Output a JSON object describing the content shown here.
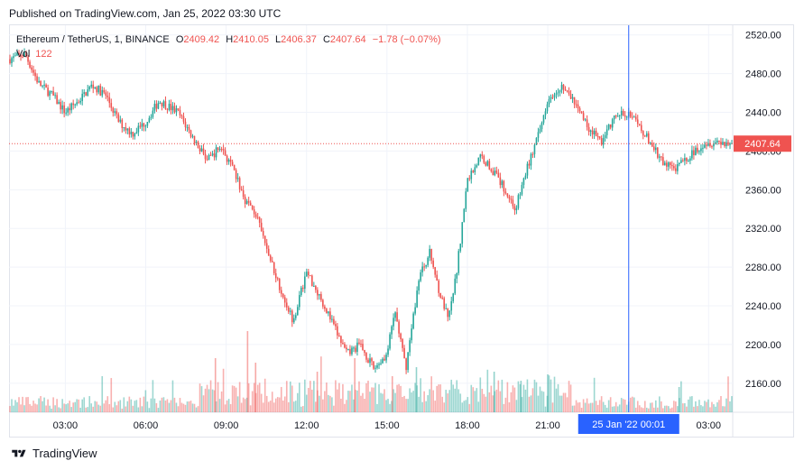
{
  "published": "Published on TradingView.com, Jan 25, 2022 03:30 UTC",
  "legend": {
    "symbol": "Ethereum / TetherUS, 1, BINANCE",
    "o_label": "O",
    "o": "2409.42",
    "h_label": "H",
    "h": "2410.05",
    "l_label": "L",
    "l": "2406.37",
    "c_label": "C",
    "c": "2407.64",
    "change": "−1.78 (−0.07%)",
    "vol_label": "Vol",
    "vol": "122"
  },
  "last_price_badge": "2407.64",
  "crosshair_time": "25 Jan '22  00:01",
  "footer": {
    "brand": "TradingView"
  },
  "colors": {
    "up": "#26a69a",
    "down": "#ef5350",
    "crosshair": "#2962ff",
    "grid": "#f0f3fa",
    "axis_text": "#131722"
  },
  "chart_data": {
    "type": "candlestick",
    "symbol": "ETH/USDT",
    "interval": "1",
    "exchange": "BINANCE",
    "ylim": [
      2130,
      2530
    ],
    "y_ticks": [
      2520,
      2480,
      2440,
      2400,
      2360,
      2320,
      2280,
      2240,
      2200,
      2160
    ],
    "y_tick_labels": [
      "2520.00",
      "2480.00",
      "2440.00",
      "2400.00",
      "2360.00",
      "2320.00",
      "2280.00",
      "2240.00",
      "2200.00",
      "2160.00"
    ],
    "x_tick_labels": [
      "03:00",
      "06:00",
      "09:00",
      "12:00",
      "15:00",
      "18:00",
      "21:00",
      "03:00"
    ],
    "x_tick_hours": [
      3,
      6,
      9,
      12,
      15,
      18,
      21,
      27
    ],
    "x_range_hours": [
      0.9,
      27.9
    ],
    "crosshair_hour": 24.02,
    "last_price": 2407.64,
    "price_path": [
      [
        0.9,
        2495
      ],
      [
        1.5,
        2500
      ],
      [
        2.0,
        2470
      ],
      [
        2.5,
        2458
      ],
      [
        3.0,
        2440
      ],
      [
        3.5,
        2452
      ],
      [
        4.0,
        2468
      ],
      [
        4.5,
        2458
      ],
      [
        5.0,
        2430
      ],
      [
        5.5,
        2418
      ],
      [
        6.0,
        2430
      ],
      [
        6.5,
        2452
      ],
      [
        7.2,
        2440
      ],
      [
        7.8,
        2412
      ],
      [
        8.3,
        2390
      ],
      [
        8.8,
        2405
      ],
      [
        9.3,
        2378
      ],
      [
        9.7,
        2350
      ],
      [
        10.1,
        2335
      ],
      [
        10.5,
        2300
      ],
      [
        11.0,
        2260
      ],
      [
        11.5,
        2225
      ],
      [
        12.0,
        2275
      ],
      [
        12.5,
        2250
      ],
      [
        13.0,
        2220
      ],
      [
        13.5,
        2190
      ],
      [
        14.0,
        2200
      ],
      [
        14.5,
        2175
      ],
      [
        15.0,
        2190
      ],
      [
        15.3,
        2235
      ],
      [
        15.7,
        2175
      ],
      [
        16.2,
        2270
      ],
      [
        16.6,
        2295
      ],
      [
        17.0,
        2250
      ],
      [
        17.3,
        2225
      ],
      [
        17.6,
        2275
      ],
      [
        18.0,
        2370
      ],
      [
        18.5,
        2395
      ],
      [
        19.0,
        2378
      ],
      [
        19.4,
        2360
      ],
      [
        19.8,
        2340
      ],
      [
        20.2,
        2380
      ],
      [
        20.7,
        2420
      ],
      [
        21.0,
        2455
      ],
      [
        21.5,
        2468
      ],
      [
        22.0,
        2450
      ],
      [
        22.5,
        2425
      ],
      [
        23.0,
        2410
      ],
      [
        23.5,
        2435
      ],
      [
        24.0,
        2440
      ],
      [
        24.4,
        2425
      ],
      [
        24.8,
        2410
      ],
      [
        25.3,
        2387
      ],
      [
        25.8,
        2382
      ],
      [
        26.3,
        2395
      ],
      [
        26.8,
        2408
      ],
      [
        27.3,
        2410
      ],
      [
        27.9,
        2407.64
      ]
    ],
    "volume_spikes": [
      [
        8.6,
        60
      ],
      [
        9.8,
        90
      ],
      [
        10.1,
        55
      ],
      [
        12.4,
        45
      ],
      [
        13.8,
        60
      ],
      [
        15.2,
        40
      ],
      [
        16.1,
        50
      ],
      [
        19.0,
        45
      ],
      [
        20.0,
        35
      ],
      [
        21.0,
        42
      ],
      [
        25.9,
        28
      ]
    ]
  }
}
